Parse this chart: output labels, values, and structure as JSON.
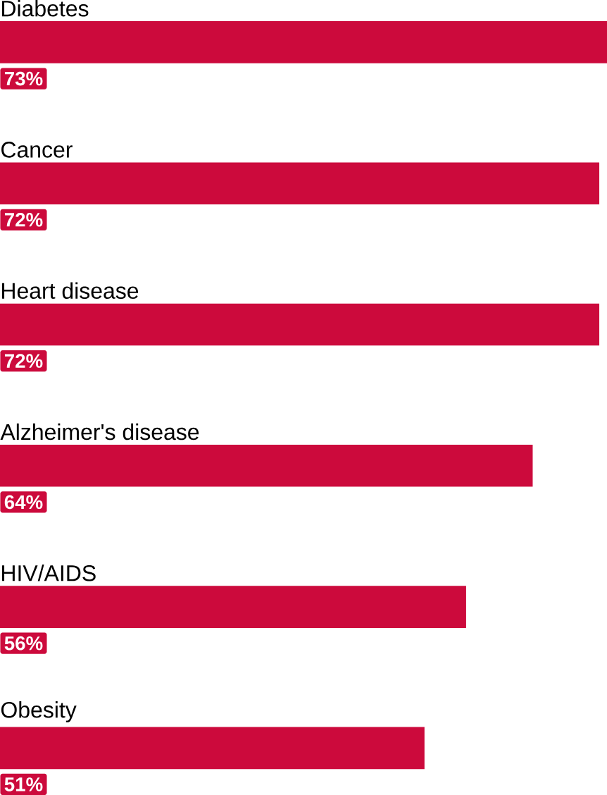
{
  "chart_data": {
    "type": "bar",
    "orientation": "horizontal",
    "categories": [
      "Diabetes",
      "Cancer",
      "Heart disease",
      "Alzheimer's disease",
      "HIV/AIDS",
      "Obesity"
    ],
    "values": [
      73,
      72,
      72,
      64,
      56,
      51
    ],
    "value_labels": [
      "73%",
      "72%",
      "72%",
      "64%",
      "56%",
      "51%"
    ],
    "color": "#cc0a3c"
  }
}
